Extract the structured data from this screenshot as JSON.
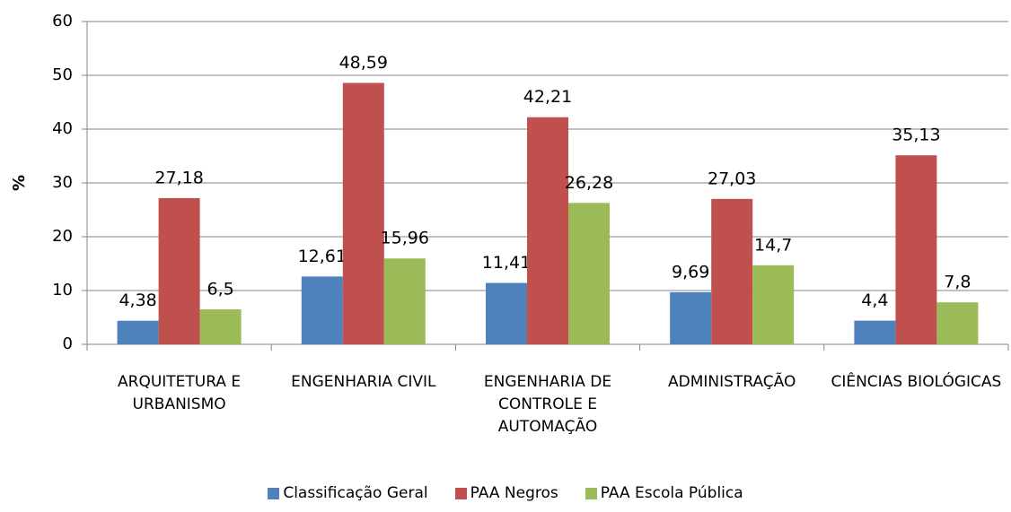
{
  "chart_data": {
    "type": "bar",
    "y_label": "%",
    "categories": [
      "ARQUITETURA E URBANISMO",
      "ENGENHARIA CIVIL",
      "ENGENHARIA DE CONTROLE E AUTOMAÇÃO",
      "ADMINISTRAÇÃO",
      "CIÊNCIAS BIOLÓGICAS"
    ],
    "series": [
      {
        "name": "Classificação Geral",
        "color": "#4f81bd",
        "values": [
          4.38,
          12.61,
          11.41,
          9.69,
          4.4
        ],
        "value_labels": [
          "4,38",
          "12,61",
          "11,41",
          "9,69",
          "4,4"
        ]
      },
      {
        "name": "PAA Negros",
        "color": "#c0504d",
        "values": [
          27.18,
          48.59,
          42.21,
          27.03,
          35.13
        ],
        "value_labels": [
          "27,18",
          "48,59",
          "42,21",
          "27,03",
          "35,13"
        ]
      },
      {
        "name": "PAA Escola Pública",
        "color": "#9bbb59",
        "values": [
          6.5,
          15.96,
          26.28,
          14.7,
          7.8
        ],
        "value_labels": [
          "6,5",
          "15,96",
          "26,28",
          "14,7",
          "7,8"
        ]
      }
    ],
    "ylim": [
      0,
      60
    ],
    "yticks": [
      0,
      10,
      20,
      30,
      40,
      50,
      60
    ],
    "grid": true,
    "legend": "bottom"
  }
}
